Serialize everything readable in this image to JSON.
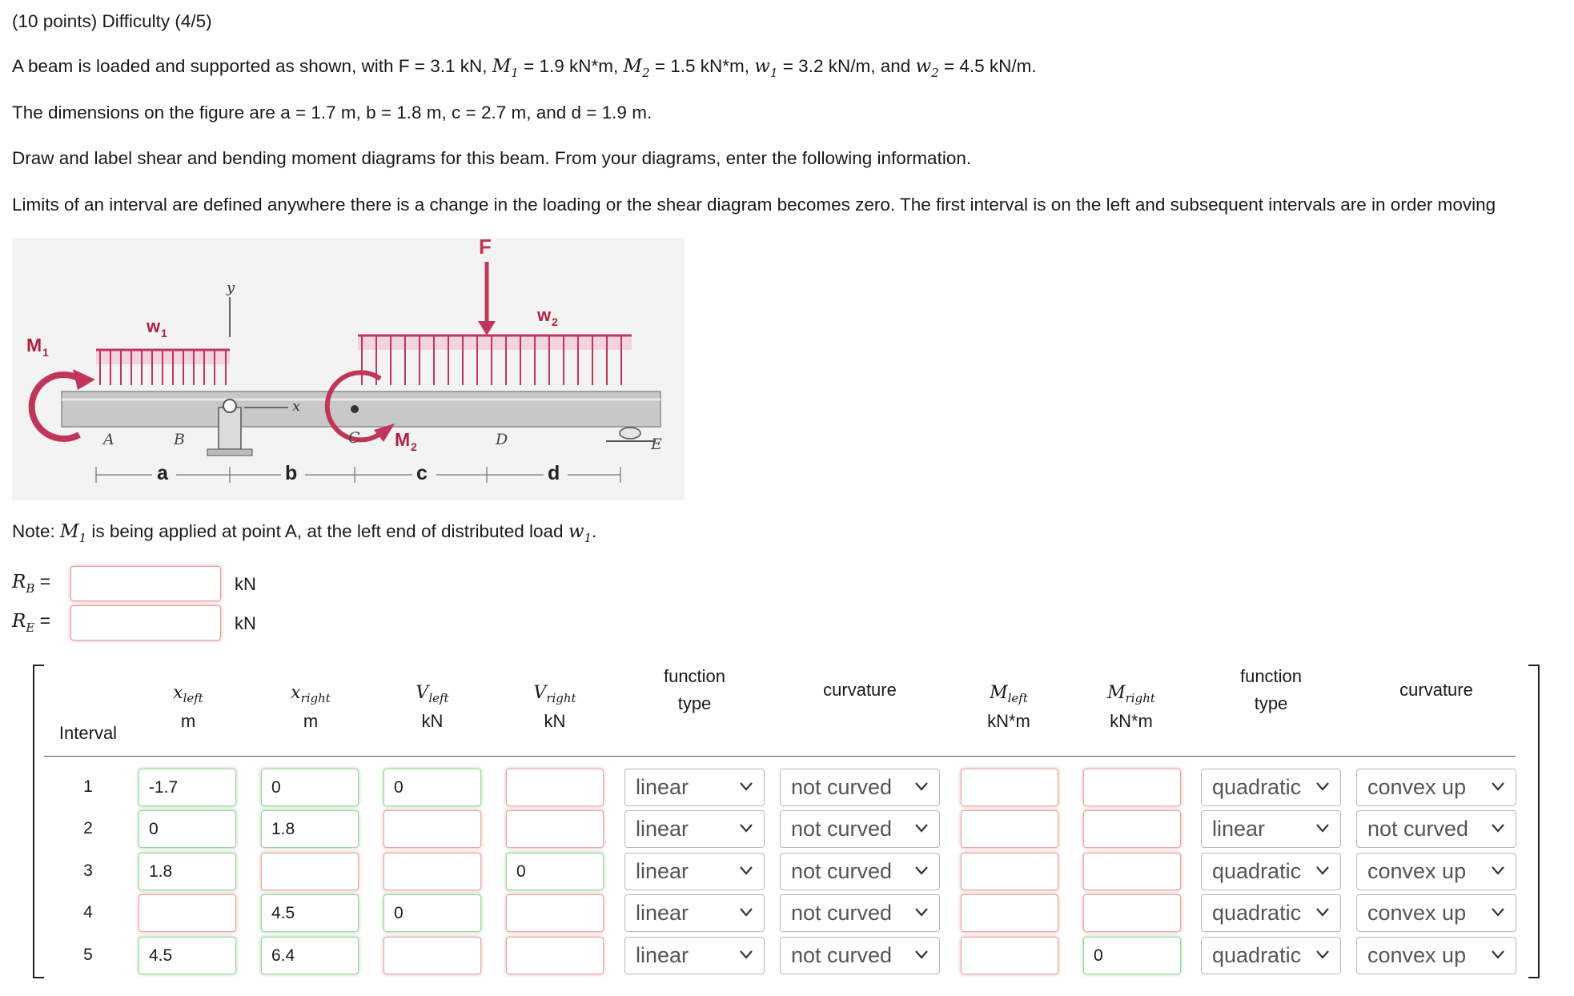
{
  "header": {
    "title": "(10 points) Difficulty (4/5)"
  },
  "problem": {
    "line1": {
      "a": "A beam is loaded and supported as shown, with F = 3.1 kN, ",
      "m1": "M",
      "m1_sub": "1",
      "b": " = 1.9 kN*m, ",
      "m2": "M",
      "m2_sub": "2",
      "c": " = 1.5 kN*m, ",
      "w1": "w",
      "w1_sub": "1",
      "d": " = 3.2 kN/m, and ",
      "w2": "w",
      "w2_sub": "2",
      "e": " = 4.5 kN/m."
    },
    "line2": "The dimensions on the figure are a = 1.7 m, b = 1.8 m, c = 2.7 m, and d = 1.9 m.",
    "line3": "Draw and label shear and bending moment diagrams for this beam. From your diagrams, enter the following information.",
    "line4": "Limits of an interval are defined anywhere there is a change in the loading or the shear diagram becomes zero. The first interval is on the left and subsequent intervals are in order moving",
    "note": {
      "a": "Note: ",
      "m": "M",
      "m_sub": "1",
      "b": " is being applied at point A, at the left end of distributed load ",
      "w": "w",
      "w_sub": "1",
      "c": "."
    }
  },
  "figure": {
    "F": "F",
    "M1": "M",
    "M1_sub": "1",
    "M2": "M",
    "M2_sub": "2",
    "w1": "w",
    "w1_sub": "1",
    "w2": "w",
    "w2_sub": "2",
    "y": "y",
    "x": "x",
    "A": "A",
    "B": "B",
    "C": "C",
    "D": "D",
    "E": "E",
    "a": "a",
    "b": "b",
    "c": "c",
    "d": "d"
  },
  "reactions": [
    {
      "sym": "R",
      "sub": "B",
      "eq": " =",
      "unit": "kN",
      "value": ""
    },
    {
      "sym": "R",
      "sub": "E",
      "eq": " =",
      "unit": "kN",
      "value": ""
    }
  ],
  "table": {
    "headers": {
      "interval": "Interval",
      "xleft": {
        "sym": "x",
        "sub": "left",
        "unit": "m"
      },
      "xright": {
        "sym": "x",
        "sub": "right",
        "unit": "m"
      },
      "vleft": {
        "sym": "V",
        "sub": "left",
        "unit": "kN"
      },
      "vright": {
        "sym": "V",
        "sub": "right",
        "unit": "kN"
      },
      "ftype1": {
        "l1": "function",
        "l2": "type"
      },
      "curv1": "curvature",
      "mleft": {
        "sym": "M",
        "sub": "left",
        "unit": "kN*m"
      },
      "mright": {
        "sym": "M",
        "sub": "right",
        "unit": "kN*m"
      },
      "ftype2": {
        "l1": "function",
        "l2": "type"
      },
      "curv2": "curvature"
    },
    "rows": [
      {
        "i": "1",
        "xl": "-1.7",
        "xr": "0",
        "vl": "0",
        "vr": "",
        "ft": "linear",
        "cv": "not curved",
        "ml": "",
        "mr": "",
        "ft2": "quadratic",
        "cv2": "convex up"
      },
      {
        "i": "2",
        "xl": "0",
        "xr": "1.8",
        "vl": "",
        "vr": "",
        "ft": "linear",
        "cv": "not curved",
        "ml": "",
        "mr": "",
        "ft2": "linear",
        "cv2": "not curved"
      },
      {
        "i": "3",
        "xl": "1.8",
        "xr": "",
        "vl": "",
        "vr": "0",
        "ft": "linear",
        "cv": "not curved",
        "ml": "",
        "mr": "",
        "ft2": "quadratic",
        "cv2": "convex up"
      },
      {
        "i": "4",
        "xl": "",
        "xr": "4.5",
        "vl": "0",
        "vr": "",
        "ft": "linear",
        "cv": "not curved",
        "ml": "",
        "mr": "",
        "ft2": "quadratic",
        "cv2": "convex up"
      },
      {
        "i": "5",
        "xl": "4.5",
        "xr": "6.4",
        "vl": "",
        "vr": "",
        "ft": "linear",
        "cv": "not curved",
        "ml": "",
        "mr": "0",
        "ft2": "quadratic",
        "cv2": "convex up"
      }
    ],
    "status": [
      [
        "green",
        "green",
        "green",
        "red",
        "red",
        "red"
      ],
      [
        "green",
        "green",
        "red",
        "red",
        "red",
        "red"
      ],
      [
        "green",
        "red",
        "red",
        "green",
        "red",
        "red"
      ],
      [
        "red",
        "green",
        "green",
        "red",
        "red",
        "red"
      ],
      [
        "green",
        "green",
        "red",
        "red",
        "red",
        "green"
      ]
    ]
  },
  "colors": {
    "load": "#c0365a",
    "load_fill": "#f3d3dc",
    "beam": "#c8c8c8",
    "valid": "#4caf50",
    "invalid": "#e05050"
  },
  "icons": {
    "select": "chevron-down-icon"
  }
}
